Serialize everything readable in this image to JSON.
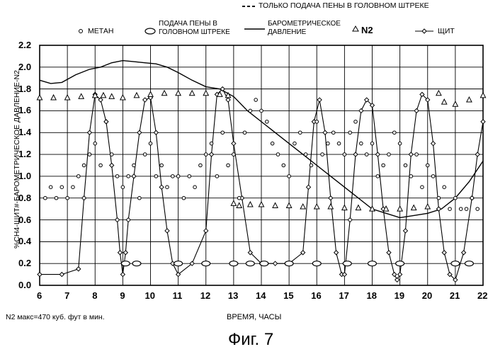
{
  "figure_label": "Фиг. 7",
  "note": "N2 макс=470 куб. фут в мин.",
  "chart_data": {
    "type": "line",
    "title": "",
    "xlabel": "ВРЕМЯ, ЧАСЫ",
    "ylabel": "%CH4-ЩИТ#-БАРОМЕТРИЧЕСКОЕ ДАВЛЕНИЕ-N2",
    "xlim": [
      6,
      22
    ],
    "ylim": [
      0.0,
      2.2
    ],
    "x_ticks": [
      "6",
      "7",
      "8",
      "9",
      "10",
      "11",
      "12",
      "13",
      "14",
      "15",
      "16",
      "17",
      "18",
      "19",
      "20",
      "21",
      "22"
    ],
    "y_ticks": [
      "0.0",
      "0.2",
      "0.4",
      "0.6",
      "0.8",
      "1.0",
      "1.2",
      "1.4",
      "1.6",
      "1.8",
      "2.0",
      "2.2"
    ],
    "grid": true,
    "legend": {
      "top": "ТОЛЬКО ПОДАЧА ПЕНЫ В ГОЛОВНОМ ШТРЕКЕ",
      "methane": "МЕТАН",
      "foam": "ПОДАЧА ПЕНЫ В ГОЛОВНОМ ШТРЕКЕ",
      "baro": "БАРОМЕТРИЧЕСКОЕ ДАВЛЕНИЕ",
      "n2": "N2",
      "shield": "ЩИТ"
    },
    "series": [
      {
        "name": "БАРОМЕТРИЧЕСКОЕ ДАВЛЕНИЕ",
        "style": "line",
        "x": [
          6.0,
          6.4,
          6.8,
          7.3,
          7.8,
          8.2,
          8.6,
          9.0,
          9.4,
          9.8,
          10.2,
          10.6,
          11.0,
          11.5,
          12.0,
          12.5,
          13.0,
          13.5,
          14.0,
          14.5,
          15.0,
          15.5,
          16.0,
          16.5,
          17.0,
          17.5,
          18.0,
          18.5,
          19.0,
          19.5,
          20.0,
          20.5,
          21.0,
          21.5,
          22.0
        ],
        "y": [
          1.88,
          1.85,
          1.86,
          1.93,
          1.98,
          2.0,
          2.04,
          2.06,
          2.05,
          2.04,
          2.03,
          2.0,
          1.95,
          1.88,
          1.82,
          1.8,
          1.73,
          1.6,
          1.5,
          1.4,
          1.3,
          1.2,
          1.1,
          1.0,
          0.9,
          0.8,
          0.7,
          0.66,
          0.62,
          0.64,
          0.66,
          0.7,
          0.8,
          0.95,
          1.14
        ]
      },
      {
        "name": "N2",
        "style": "triangle",
        "x": [
          6.0,
          6.5,
          7.0,
          7.5,
          8.0,
          8.3,
          8.6,
          9.0,
          9.5,
          10.0,
          10.5,
          11.0,
          11.5,
          12.0,
          12.5,
          12.8,
          13.0,
          13.2,
          13.6,
          14.0,
          14.5,
          15.0,
          15.5,
          16.0,
          16.5,
          17.0,
          17.5,
          18.0,
          18.5,
          19.0,
          19.5,
          20.0,
          20.4,
          20.6,
          21.0,
          21.5,
          22.0
        ],
        "y": [
          1.72,
          1.72,
          1.72,
          1.73,
          1.74,
          1.74,
          1.73,
          1.72,
          1.74,
          1.75,
          1.76,
          1.76,
          1.76,
          1.76,
          1.75,
          1.74,
          0.75,
          0.73,
          0.74,
          0.74,
          0.73,
          0.73,
          0.72,
          0.72,
          0.72,
          0.71,
          0.71,
          0.7,
          0.7,
          0.7,
          0.71,
          0.72,
          1.76,
          1.68,
          1.66,
          1.7,
          1.74
        ]
      },
      {
        "name": "ЩИТ",
        "style": "diamond-line",
        "x": [
          6.0,
          6.8,
          7.4,
          7.6,
          7.8,
          8.0,
          8.2,
          8.4,
          8.6,
          8.8,
          8.9,
          9.0,
          9.1,
          9.2,
          9.4,
          9.6,
          9.8,
          10.0,
          10.2,
          10.4,
          10.6,
          10.8,
          11.0,
          11.5,
          12.0,
          12.2,
          12.4,
          12.6,
          12.8,
          13.0,
          13.3,
          13.6,
          14.0,
          14.5,
          15.0,
          15.5,
          15.7,
          15.9,
          16.1,
          16.3,
          16.5,
          16.7,
          16.9,
          17.0,
          17.2,
          17.4,
          17.6,
          17.8,
          18.0,
          18.2,
          18.4,
          18.6,
          18.8,
          18.9,
          19.0,
          19.2,
          19.4,
          19.6,
          19.8,
          20.0,
          20.2,
          20.4,
          20.6,
          20.8,
          21.0,
          21.3,
          21.6,
          21.8,
          22.0
        ],
        "y": [
          0.1,
          0.1,
          0.15,
          0.8,
          1.4,
          1.75,
          1.7,
          1.5,
          1.1,
          0.6,
          0.3,
          0.1,
          0.3,
          0.6,
          1.0,
          1.4,
          1.7,
          1.72,
          1.4,
          0.9,
          0.5,
          0.2,
          0.1,
          0.2,
          0.5,
          1.2,
          1.75,
          1.8,
          1.7,
          1.3,
          0.8,
          0.3,
          0.2,
          0.2,
          0.2,
          0.3,
          0.9,
          1.5,
          1.7,
          1.4,
          0.8,
          0.3,
          0.1,
          0.1,
          0.6,
          1.2,
          1.6,
          1.7,
          1.65,
          1.2,
          0.7,
          0.3,
          0.1,
          0.05,
          0.1,
          0.5,
          1.2,
          1.6,
          1.75,
          1.7,
          1.3,
          0.7,
          0.3,
          0.1,
          0.05,
          0.3,
          0.8,
          1.2,
          1.5
        ]
      },
      {
        "name": "ПОДАЧА ПЕНЫ В ГОЛОВНОМ ШТРЕКЕ",
        "style": "ellipse",
        "x": [
          9.1,
          9.5,
          11.0,
          12.0,
          13.0,
          13.6,
          14.1,
          15.0,
          16.0,
          17.1,
          18.0,
          19.0,
          21.0,
          21.5
        ],
        "y": [
          0.2,
          0.2,
          0.2,
          0.2,
          0.2,
          0.2,
          0.2,
          0.2,
          0.2,
          0.2,
          0.2,
          0.2,
          0.2,
          0.2
        ]
      },
      {
        "name": "МЕТАН",
        "style": "circle",
        "x": [
          6.2,
          6.4,
          6.6,
          6.8,
          7.0,
          7.2,
          7.4,
          7.6,
          7.8,
          8.0,
          8.2,
          8.4,
          8.6,
          8.8,
          9.0,
          9.2,
          9.4,
          9.6,
          9.8,
          10.0,
          10.2,
          10.4,
          10.6,
          10.8,
          11.0,
          11.2,
          11.4,
          11.6,
          11.8,
          12.0,
          12.2,
          12.4,
          12.6,
          12.8,
          13.0,
          13.2,
          13.4,
          13.6,
          13.8,
          14.0,
          14.2,
          14.4,
          14.6,
          14.8,
          15.0,
          15.2,
          15.4,
          15.6,
          15.8,
          16.0,
          16.2,
          16.4,
          16.6,
          16.8,
          17.0,
          17.2,
          17.4,
          17.6,
          17.8,
          18.0,
          18.2,
          18.4,
          18.6,
          18.8,
          19.0,
          19.2,
          19.4,
          19.6,
          19.8,
          20.0,
          20.2,
          20.4,
          20.6,
          20.8,
          21.0,
          21.2,
          21.4,
          21.6,
          21.8
        ],
        "y": [
          0.8,
          0.9,
          0.8,
          0.9,
          0.8,
          0.9,
          1.0,
          1.1,
          1.2,
          1.3,
          1.1,
          1.5,
          1.2,
          1.0,
          0.9,
          1.0,
          1.1,
          0.8,
          1.2,
          1.3,
          1.0,
          1.1,
          0.9,
          1.0,
          1.0,
          0.8,
          1.0,
          0.9,
          1.1,
          1.2,
          1.3,
          1.0,
          1.4,
          1.1,
          1.2,
          0.8,
          1.4,
          1.6,
          1.7,
          1.6,
          1.5,
          1.3,
          1.2,
          1.1,
          1.0,
          1.3,
          1.4,
          1.2,
          1.1,
          1.5,
          1.2,
          1.3,
          1.4,
          1.3,
          1.2,
          1.4,
          1.5,
          1.3,
          1.2,
          1.3,
          1.0,
          1.1,
          1.2,
          1.4,
          1.3,
          1.1,
          1.0,
          1.2,
          0.9,
          1.1,
          1.0,
          0.8,
          0.9,
          0.7,
          0.8,
          0.7,
          0.7,
          0.8,
          0.7
        ]
      }
    ]
  }
}
